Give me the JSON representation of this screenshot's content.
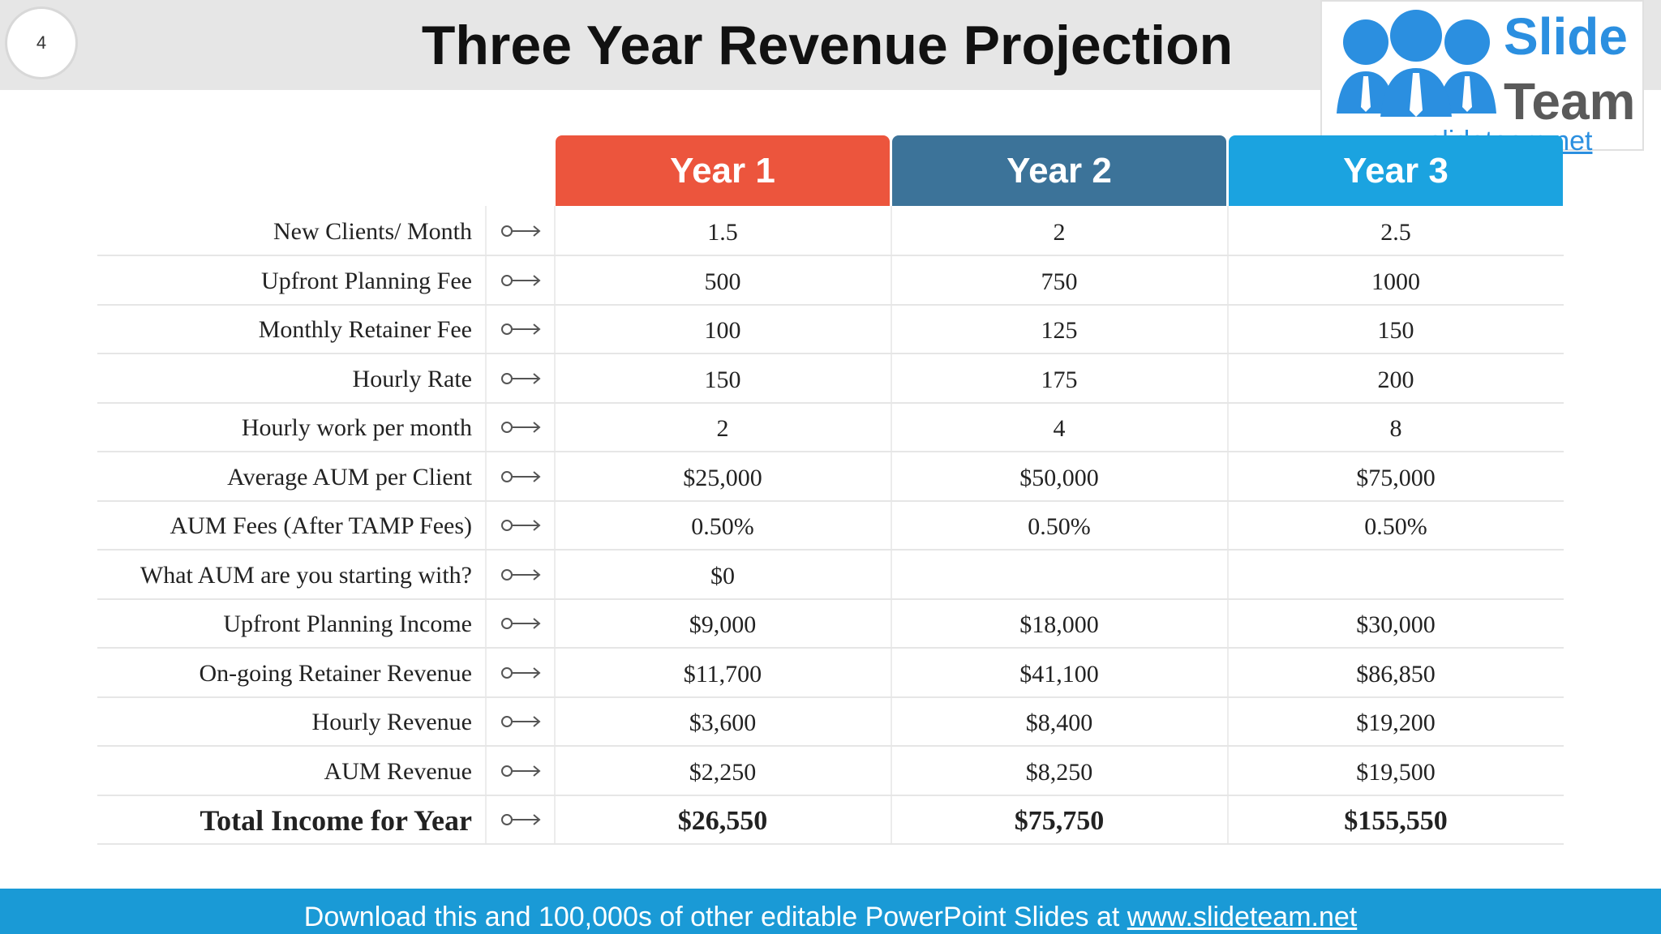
{
  "slide": {
    "page_number": "4",
    "title": "Three Year Revenue Projection"
  },
  "logo": {
    "word1": "Slide",
    "word2": "Team",
    "url": "www.slideteam.net"
  },
  "table": {
    "years": [
      {
        "label": "Year 1",
        "color": "#ec553d"
      },
      {
        "label": "Year 2",
        "color": "#3c7399"
      },
      {
        "label": "Year 3",
        "color": "#1ba3e0"
      }
    ],
    "rows": [
      {
        "label": "New Clients/ Month",
        "values": [
          "1.5",
          "2",
          "2.5"
        ]
      },
      {
        "label": "Upfront Planning Fee",
        "values": [
          "500",
          "750",
          "1000"
        ]
      },
      {
        "label": "Monthly Retainer Fee",
        "values": [
          "100",
          "125",
          "150"
        ]
      },
      {
        "label": "Hourly Rate",
        "values": [
          "150",
          "175",
          "200"
        ]
      },
      {
        "label": "Hourly work per month",
        "values": [
          "2",
          "4",
          "8"
        ]
      },
      {
        "label": "Average AUM per Client",
        "values": [
          "$25,000",
          "$50,000",
          "$75,000"
        ]
      },
      {
        "label": "AUM Fees (After TAMP Fees)",
        "values": [
          "0.50%",
          "0.50%",
          "0.50%"
        ]
      },
      {
        "label": "What AUM are you starting with?",
        "values": [
          "$0",
          "",
          ""
        ]
      },
      {
        "label": "Upfront Planning Income",
        "values": [
          "$9,000",
          "$18,000",
          "$30,000"
        ]
      },
      {
        "label": "On-going Retainer Revenue",
        "values": [
          "$11,700",
          "$41,100",
          "$86,850"
        ]
      },
      {
        "label": "Hourly Revenue",
        "values": [
          "$3,600",
          "$8,400",
          "$19,200"
        ]
      },
      {
        "label": "AUM Revenue",
        "values": [
          "$2,250",
          "$8,250",
          "$19,500"
        ]
      },
      {
        "label": "Total Income for Year",
        "values": [
          "$26,550",
          "$75,750",
          "$155,550"
        ]
      }
    ]
  },
  "footer": {
    "text": "Download this and 100,000s of other editable PowerPoint Slides at ",
    "link": "www.slideteam.net"
  }
}
